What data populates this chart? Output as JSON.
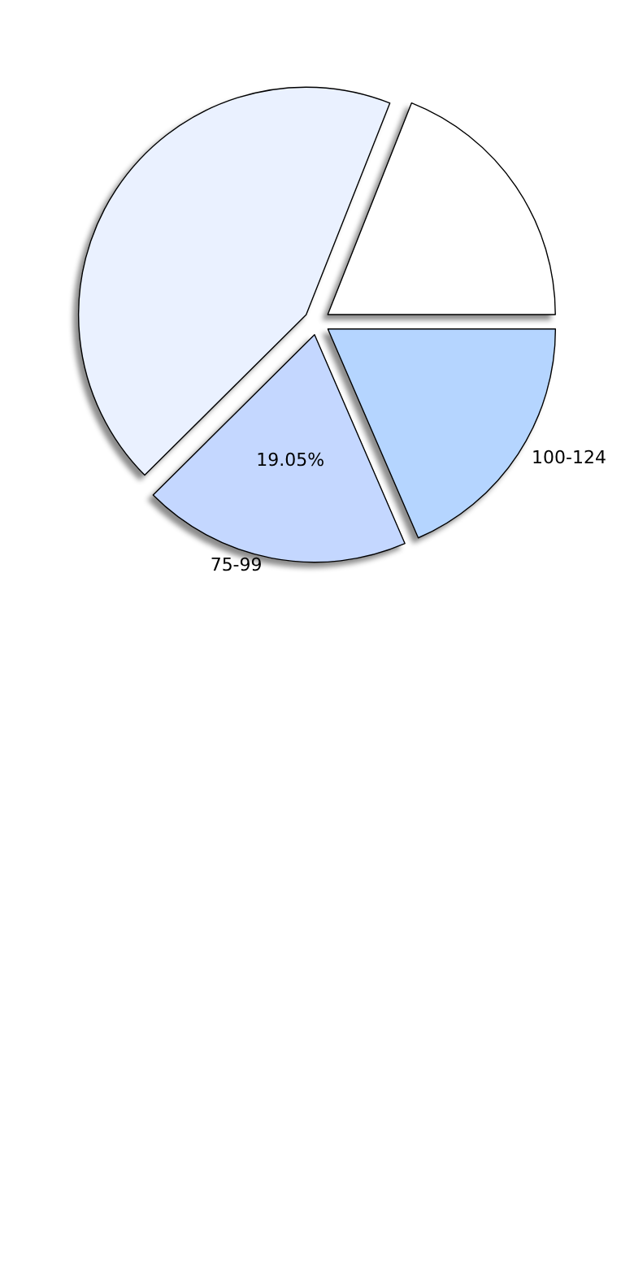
{
  "chart_data": {
    "type": "pie",
    "categories": [
      "100-124",
      "75-99",
      null,
      null
    ],
    "values": [
      18.5,
      19.05,
      43.45,
      19
    ],
    "value_labels": [
      null,
      "19.05%",
      null,
      null
    ],
    "colors": [
      "#b5d5ff",
      "#c4d7ff",
      "#eaf1ff",
      "#ffffff"
    ],
    "legend": false
  }
}
